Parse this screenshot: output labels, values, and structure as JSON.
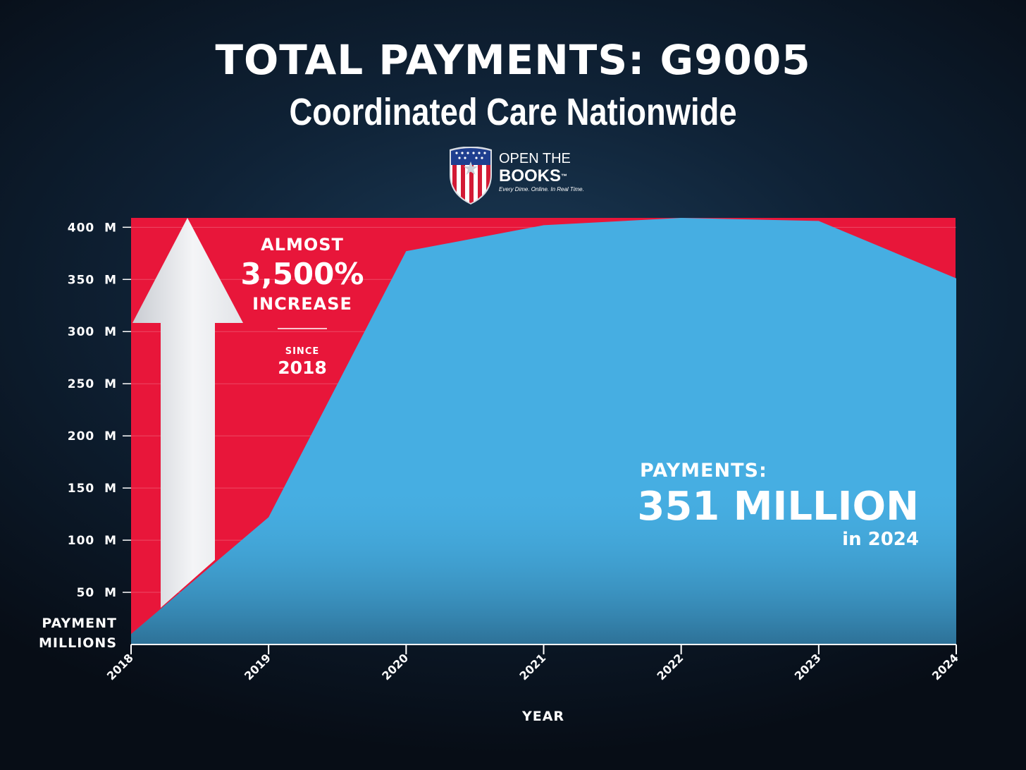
{
  "header": {
    "title": "TOTAL PAYMENTS: G9005",
    "subtitle": "Coordinated Care Nationwide"
  },
  "logo": {
    "line1": "OPEN THE",
    "line2": "BOOKS",
    "trademark": "™",
    "tagline": "Every Dime. Online. In Real Time."
  },
  "colors": {
    "area": "#46aee2",
    "highlight": "#e8163a",
    "background": "#0b1724",
    "text": "#ffffff"
  },
  "callout_increase": {
    "line1": "ALMOST",
    "value": "3,500%",
    "line3": "INCREASE",
    "since_label": "SINCE",
    "since_year": "2018"
  },
  "callout_total": {
    "label": "PAYMENTS:",
    "value": "351 MILLION",
    "note": "in 2024"
  },
  "chart_data": {
    "type": "area",
    "x": [
      "2018",
      "2019",
      "2020",
      "2021",
      "2022",
      "2023",
      "2024"
    ],
    "series": [
      {
        "values": [
          10,
          122,
          377,
          402,
          409,
          406,
          351
        ]
      }
    ],
    "ylim": [
      0,
      409
    ],
    "yticks": [
      {
        "value": 400,
        "label": "400  M"
      },
      {
        "value": 350,
        "label": "350  M"
      },
      {
        "value": 300,
        "label": "300  M"
      },
      {
        "value": 250,
        "label": "250  M"
      },
      {
        "value": 200,
        "label": "200  M"
      },
      {
        "value": 150,
        "label": "150  M"
      },
      {
        "value": 100,
        "label": "100  M"
      },
      {
        "value": 50,
        "label": "50  M"
      }
    ],
    "ylabel": [
      "PAYMENT",
      "MILLIONS"
    ],
    "xlabel": "YEAR",
    "grid": true
  }
}
